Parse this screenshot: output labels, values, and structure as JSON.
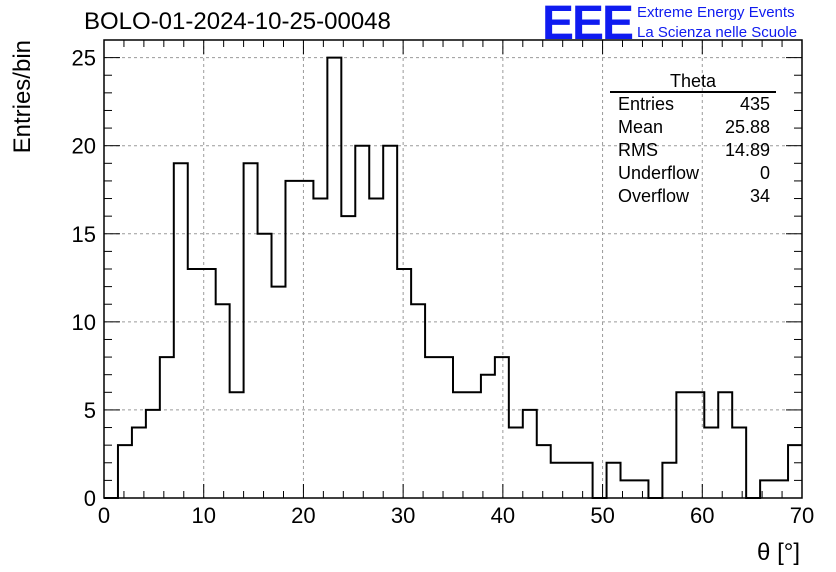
{
  "title": "BOLO-01-2024-10-25-00048",
  "logo": {
    "mark": "EEE",
    "line1": "Extreme Energy Events",
    "line2": "La Scienza nelle Scuole",
    "color": "#0f1bf0"
  },
  "stats_box": {
    "name": "Theta",
    "rows": [
      {
        "label": "Entries",
        "value": "435"
      },
      {
        "label": "Mean",
        "value": "25.88"
      },
      {
        "label": "RMS",
        "value": "14.89"
      },
      {
        "label": "Underflow",
        "value": "0"
      },
      {
        "label": "Overflow",
        "value": "34"
      }
    ]
  },
  "chart_data": {
    "type": "histogram",
    "title": "BOLO-01-2024-10-25-00048",
    "xlabel": "θ [°]",
    "ylabel": "Entries/bin",
    "xlim": [
      0,
      70
    ],
    "ylim": [
      0,
      26
    ],
    "grid": true,
    "bin_width": 1.4,
    "bin_start": 0,
    "x_ticks": [
      0,
      10,
      20,
      30,
      40,
      50,
      60,
      70
    ],
    "y_ticks": [
      0,
      5,
      10,
      15,
      20,
      25
    ],
    "values": [
      0,
      3,
      4,
      5,
      8,
      19,
      13,
      13,
      11,
      6,
      19,
      15,
      12,
      18,
      18,
      17,
      25,
      16,
      20,
      17,
      20,
      13,
      11,
      8,
      8,
      6,
      6,
      7,
      8,
      4,
      5,
      3,
      2,
      2,
      2,
      0,
      2,
      1,
      1,
      0,
      2,
      6,
      6,
      4,
      6,
      4,
      0,
      1,
      1,
      3
    ]
  }
}
